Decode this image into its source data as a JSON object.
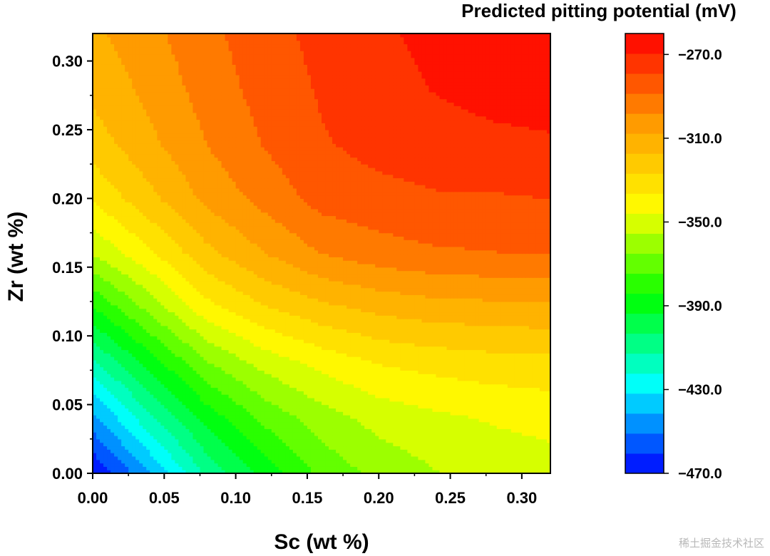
{
  "chart_data": {
    "type": "heatmap",
    "subtype": "filled-contour",
    "title": "Predicted pitting potential (mV)",
    "xlabel": "Sc (wt %)",
    "ylabel": "Zr (wt %)",
    "xlim": [
      0,
      0.32
    ],
    "ylim": [
      0,
      0.32
    ],
    "xticks": [
      0,
      0.05,
      0.1,
      0.15,
      0.2,
      0.25,
      0.3
    ],
    "yticks": [
      0,
      0.05,
      0.1,
      0.15,
      0.2,
      0.25,
      0.3
    ],
    "xtick_labels": [
      "0.00",
      "0.05",
      "0.10",
      "0.15",
      "0.20",
      "0.25",
      "0.30"
    ],
    "ytick_labels": [
      "0.00",
      "0.05",
      "0.10",
      "0.15",
      "0.20",
      "0.25",
      "0.30"
    ],
    "x": [
      0,
      0.04,
      0.08,
      0.12,
      0.16,
      0.2,
      0.24,
      0.28,
      0.32
    ],
    "y": [
      0,
      0.04,
      0.08,
      0.12,
      0.16,
      0.2,
      0.24,
      0.28,
      0.32
    ],
    "z": [
      [
        -470,
        -442,
        -410,
        -390,
        -372,
        -362,
        -356,
        -352,
        -350
      ],
      [
        -445,
        -415,
        -390,
        -372,
        -360,
        -352,
        -348,
        -345,
        -343
      ],
      [
        -415,
        -390,
        -366,
        -352,
        -343,
        -336,
        -333,
        -331,
        -330
      ],
      [
        -385,
        -362,
        -340,
        -328,
        -320,
        -315,
        -312,
        -311,
        -310
      ],
      [
        -355,
        -338,
        -320,
        -308,
        -298,
        -293,
        -290,
        -289,
        -288
      ],
      [
        -335,
        -320,
        -305,
        -295,
        -285,
        -282,
        -280,
        -280,
        -279
      ],
      [
        -322,
        -310,
        -298,
        -288,
        -280,
        -276,
        -274,
        -272,
        -271
      ],
      [
        -315,
        -305,
        -294,
        -285,
        -278,
        -273,
        -269,
        -266,
        -264
      ],
      [
        -310,
        -301,
        -291,
        -283,
        -276,
        -271,
        -267,
        -263,
        -260
      ]
    ],
    "colorbar": {
      "min": -470,
      "max": -260,
      "levels": 22,
      "tick_values": [
        -270,
        -310,
        -350,
        -390,
        -430,
        -470
      ],
      "tick_labels": [
        "−270.0",
        "−310.0",
        "−350.0",
        "−390.0",
        "−430.0",
        "−470.0"
      ]
    },
    "colormap": [
      "#0000ff",
      "#00ffff",
      "#00ff00",
      "#ffff00",
      "#ff9900",
      "#ff0000"
    ]
  },
  "watermark": "稀土掘金技术社区"
}
